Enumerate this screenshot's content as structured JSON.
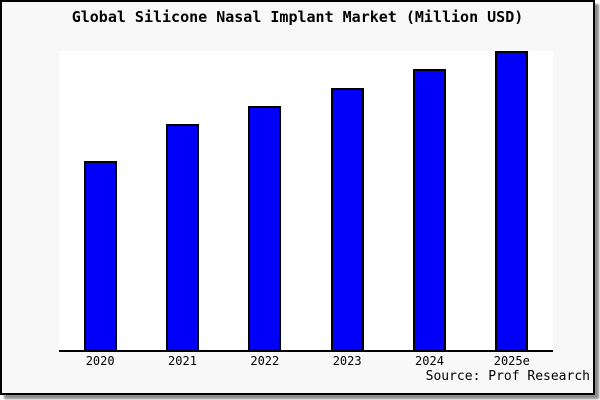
{
  "page": {
    "title": "Global Silicone Nasal Implant Market (Million USD)",
    "source": "Source: Prof Research"
  },
  "colors": {
    "bar_fill": "#0000fa",
    "bar_border": "#000000",
    "frame_background": "#f8f8f8",
    "plot_background": "#ffffff",
    "axis": "#000000",
    "frame_border": "#000000",
    "shadow": "#8c8c8c",
    "text": "#000000"
  },
  "chart_data": {
    "type": "bar",
    "title": "Global Silicone Nasal Implant Market (Million USD)",
    "categories": [
      "2020",
      "2021",
      "2022",
      "2023",
      "2024",
      "2025e"
    ],
    "values": [
      63.3,
      75.5,
      81.7,
      87.8,
      93.9,
      100
    ],
    "values_note": "no y-axis tick labels shown; values are bar heights measured relative to the tallest (2025e) bar = 100",
    "xlabel": "",
    "ylabel": "",
    "ylim": [
      0,
      100
    ],
    "grid": false,
    "legend": null,
    "bar_color": "#0000fa",
    "source": "Source: Prof Research"
  }
}
